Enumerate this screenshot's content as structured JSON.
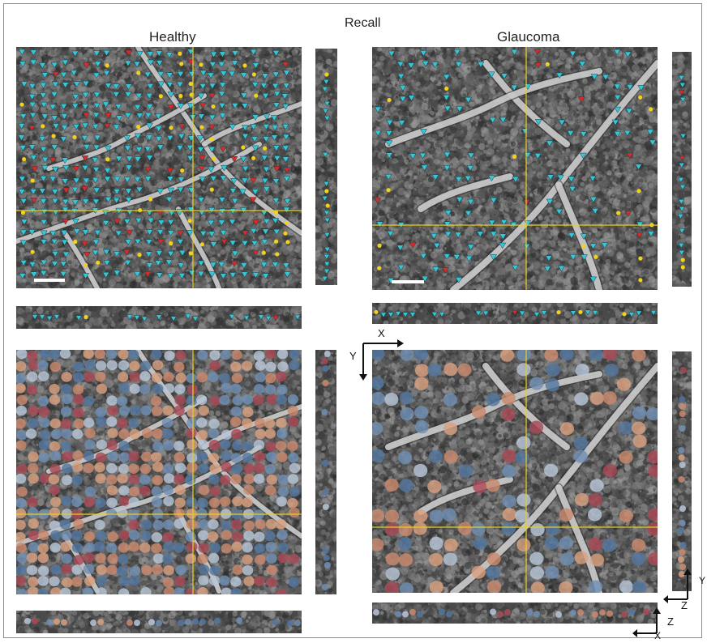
{
  "figure": {
    "title": "Recall",
    "column_labels": {
      "healthy": "Healthy",
      "glaucoma": "Glaucoma"
    },
    "axis_labels": {
      "x": "X",
      "y": "Y",
      "z": "Z"
    },
    "colors": {
      "background": "#ffffff",
      "crosshair": "#e8d020",
      "marker_true_positive": "#38c6d6",
      "marker_false_negative": "#d92a2a",
      "marker_false_positive": "#f2d21a",
      "segmentation_palette": [
        "#c98a6e",
        "#6f8fb3",
        "#a84a55",
        "#d8a080",
        "#5577a0",
        "#b8c6d8"
      ],
      "vessel": "#d6d6d6",
      "tissue": "#4a4a4a"
    },
    "icons": [
      "down-triangle-marker",
      "dot-marker",
      "axis-arrow-icon"
    ],
    "panel_layout": "2x2 grid of en-face images with orthogonal XZ and YZ projections"
  }
}
